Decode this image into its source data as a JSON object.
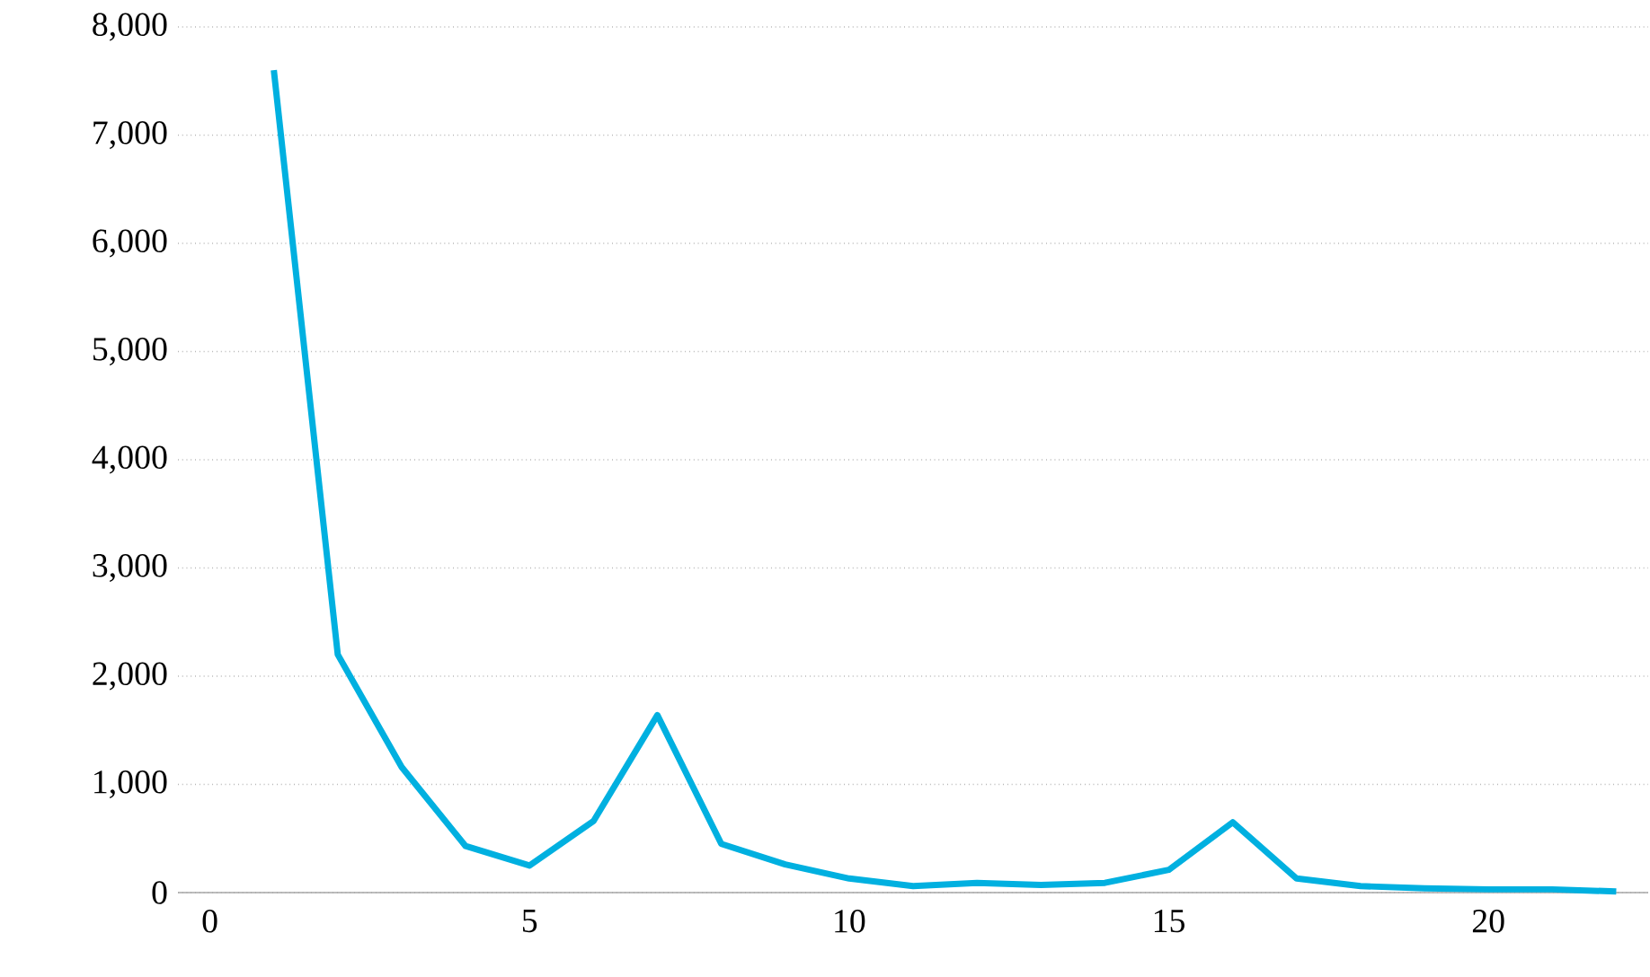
{
  "chart_data": {
    "type": "line",
    "color": "#00b0e0",
    "x": [
      1,
      2,
      3,
      4,
      5,
      6,
      7,
      8,
      9,
      10,
      11,
      12,
      13,
      14,
      15,
      16,
      17,
      18,
      19,
      20,
      21,
      22
    ],
    "values": [
      7600,
      2200,
      1160,
      430,
      250,
      660,
      1640,
      450,
      260,
      130,
      60,
      90,
      70,
      90,
      210,
      650,
      130,
      60,
      40,
      30,
      30,
      10
    ],
    "xlim": [
      -0.5,
      22.5
    ],
    "xticks": [
      0,
      5,
      10,
      15,
      20
    ],
    "ylim": [
      0,
      8000
    ],
    "yticks": [
      {
        "value": 0,
        "label": "0"
      },
      {
        "value": 1000,
        "label": "1,000"
      },
      {
        "value": 2000,
        "label": "2,000"
      },
      {
        "value": 3000,
        "label": "3,000"
      },
      {
        "value": 4000,
        "label": "4,000"
      },
      {
        "value": 5000,
        "label": "5,000"
      },
      {
        "value": 6000,
        "label": "6,000"
      },
      {
        "value": 7000,
        "label": "7,000"
      },
      {
        "value": 8000,
        "label": "8,000"
      }
    ],
    "grid": "y",
    "marker": "none",
    "line_style": "solid"
  }
}
